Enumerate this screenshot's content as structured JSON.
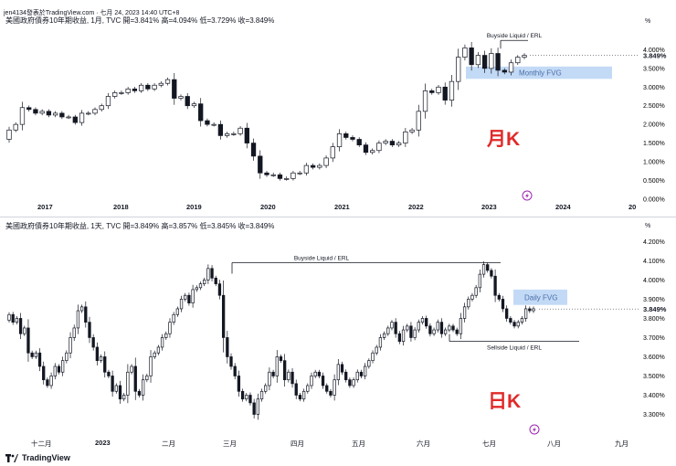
{
  "window": {
    "title": "jen4134發表於TradingView.com · 七月 24, 2023 14:40 UTC+8"
  },
  "footer": {
    "logo_text": "TradingView"
  },
  "chart_data": [
    {
      "type": "candlestick",
      "header": "美國政府債券10年期收益, 1月, TVC  開=3.841%  高=4.094%  低=3.729%  收=3.849%",
      "big_label": "月K",
      "unit_label": "%",
      "y_ticks": [
        "4.000%",
        "3.500%",
        "3.000%",
        "2.500%",
        "2.000%",
        "1.500%",
        "1.000%",
        "0.500%",
        "0.000%"
      ],
      "y_tick_values": [
        4.0,
        3.5,
        3.0,
        2.5,
        2.0,
        1.5,
        1.0,
        0.5,
        0.0
      ],
      "ylim": [
        -0.15,
        4.5
      ],
      "last_price": "3.849%",
      "last_price_value": 3.849,
      "x_labels": [
        "2017",
        "2018",
        "2019",
        "2020",
        "2021",
        "2022",
        "2023",
        "2024",
        "20"
      ],
      "annotations": [
        {
          "text": "Buyside Liquid / ERL",
          "level": 4.25
        },
        {
          "text": "Monthly FVG",
          "low": 3.22,
          "high": 3.55
        }
      ],
      "closes": [
        1.85,
        2.0,
        2.45,
        2.4,
        2.3,
        2.35,
        2.25,
        2.3,
        2.2,
        2.2,
        2.05,
        2.3,
        2.3,
        2.4,
        2.5,
        2.75,
        2.85,
        2.85,
        2.95,
        2.9,
        3.05,
        2.95,
        3.05,
        3.1,
        3.2,
        2.7,
        2.75,
        2.5,
        2.55,
        2.1,
        2.0,
        2.0,
        1.7,
        1.75,
        1.75,
        1.9,
        1.5,
        1.15,
        0.7,
        0.65,
        0.65,
        0.55,
        0.55,
        0.7,
        0.7,
        0.9,
        0.85,
        0.9,
        1.1,
        1.4,
        1.75,
        1.65,
        1.6,
        1.45,
        1.25,
        1.3,
        1.5,
        1.55,
        1.45,
        1.5,
        1.8,
        1.85,
        2.35,
        2.9,
        2.85,
        3.0,
        2.65,
        3.15,
        3.8,
        4.05,
        3.6,
        3.85,
        3.5,
        3.9,
        3.45,
        3.4,
        3.65,
        3.8,
        3.85
      ],
      "opens": [
        1.6,
        1.85,
        2.0,
        2.45,
        2.4,
        2.3,
        2.35,
        2.25,
        2.3,
        2.2,
        2.2,
        2.05,
        2.3,
        2.3,
        2.4,
        2.5,
        2.75,
        2.85,
        2.85,
        2.95,
        2.9,
        3.05,
        2.95,
        3.05,
        3.1,
        3.2,
        2.7,
        2.75,
        2.5,
        2.55,
        2.1,
        2.0,
        2.0,
        1.7,
        1.75,
        1.75,
        1.9,
        1.5,
        1.15,
        0.7,
        0.65,
        0.65,
        0.55,
        0.55,
        0.7,
        0.7,
        0.9,
        0.85,
        0.9,
        1.1,
        1.4,
        1.75,
        1.65,
        1.6,
        1.45,
        1.25,
        1.3,
        1.5,
        1.55,
        1.45,
        1.5,
        1.8,
        1.85,
        2.35,
        2.9,
        2.85,
        3.0,
        2.65,
        3.15,
        3.8,
        4.05,
        3.6,
        3.85,
        3.5,
        3.9,
        3.45,
        3.4,
        3.65,
        3.8
      ]
    },
    {
      "type": "candlestick",
      "header": "美國政府債券10年期收益, 1天, TVC  開=3.849%  高=3.857%  低=3.845%  收=3.849%",
      "big_label": "日K",
      "unit_label": "%",
      "y_ticks": [
        "4.200%",
        "4.100%",
        "4.000%",
        "3.900%",
        "3.800%",
        "3.700%",
        "3.600%",
        "3.500%",
        "3.400%",
        "3.300%"
      ],
      "y_tick_values": [
        4.2,
        4.1,
        4.0,
        3.9,
        3.8,
        3.7,
        3.6,
        3.5,
        3.4,
        3.3
      ],
      "ylim": [
        3.25,
        4.24
      ],
      "last_price": "3.849%",
      "last_price_value": 3.849,
      "x_labels": [
        "十二月",
        "2023",
        "二月",
        "三月",
        "四月",
        "五月",
        "六月",
        "七月",
        "八月",
        "九月"
      ],
      "annotations": [
        {
          "text": "Buyside Liquid / ERL",
          "level": 4.09
        },
        {
          "text": "Daily FVG",
          "low": 3.87,
          "high": 3.95
        },
        {
          "text": "Sellside Liquid / ERL",
          "level": 3.68
        }
      ],
      "closes": [
        3.82,
        3.78,
        3.8,
        3.72,
        3.75,
        3.62,
        3.6,
        3.62,
        3.55,
        3.48,
        3.45,
        3.5,
        3.55,
        3.52,
        3.58,
        3.62,
        3.7,
        3.75,
        3.84,
        3.86,
        3.78,
        3.7,
        3.65,
        3.58,
        3.6,
        3.52,
        3.5,
        3.42,
        3.45,
        3.38,
        3.4,
        3.52,
        3.55,
        3.42,
        3.4,
        3.48,
        3.5,
        3.6,
        3.62,
        3.65,
        3.7,
        3.72,
        3.78,
        3.82,
        3.85,
        3.9,
        3.92,
        3.88,
        3.95,
        3.96,
        3.98,
        4.0,
        4.06,
        4.01,
        3.98,
        3.92,
        3.7,
        3.6,
        3.55,
        3.5,
        3.42,
        3.38,
        3.4,
        3.36,
        3.3,
        3.38,
        3.42,
        3.45,
        3.52,
        3.5,
        3.6,
        3.58,
        3.48,
        3.52,
        3.46,
        3.4,
        3.38,
        3.42,
        3.45,
        3.5,
        3.52,
        3.5,
        3.45,
        3.42,
        3.4,
        3.48,
        3.56,
        3.52,
        3.48,
        3.45,
        3.48,
        3.52,
        3.5,
        3.55,
        3.58,
        3.62,
        3.65,
        3.7,
        3.72,
        3.75,
        3.78,
        3.72,
        3.68,
        3.74,
        3.76,
        3.7,
        3.74,
        3.78,
        3.8,
        3.76,
        3.72,
        3.74,
        3.78,
        3.72,
        3.74,
        3.76,
        3.74,
        3.72,
        3.8,
        3.86,
        3.9,
        3.92,
        3.96,
        4.03,
        4.08,
        4.05,
        4.02,
        3.92,
        3.9,
        3.85,
        3.8,
        3.78,
        3.76,
        3.78,
        3.8,
        3.85,
        3.84,
        3.85
      ]
    }
  ]
}
